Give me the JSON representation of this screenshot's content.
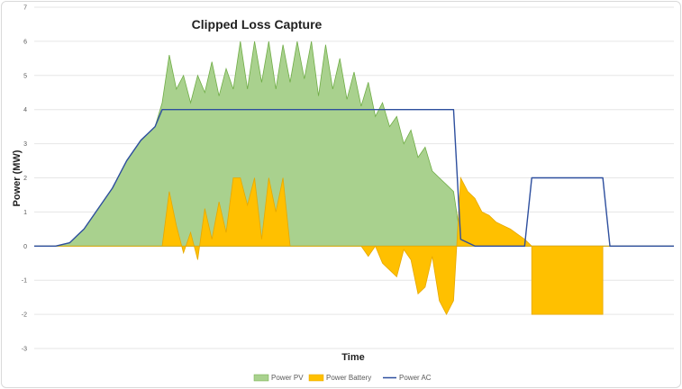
{
  "chart_data": {
    "type": "area",
    "title": "Clipped Loss Capture",
    "xlabel": "Time",
    "ylabel": "Power (MW)",
    "ylim": [
      -3,
      7
    ],
    "y_ticks": [
      "7",
      "6",
      "5",
      "4",
      "3",
      "2",
      "1",
      "0",
      "-1",
      "-2",
      "-3"
    ],
    "grid": true,
    "legend_position": "bottom",
    "x": [
      0,
      2,
      4,
      6,
      8,
      10,
      12,
      14,
      16,
      18,
      20,
      22,
      24,
      26,
      28,
      30,
      32,
      34,
      36,
      38,
      40,
      42,
      44,
      46,
      48,
      50,
      52,
      54,
      56,
      58,
      60,
      62,
      64,
      66,
      68,
      70,
      72,
      74,
      76,
      78,
      80,
      82,
      84,
      86,
      88,
      90,
      92,
      94,
      96,
      98,
      100,
      102,
      104,
      106,
      108,
      110,
      112,
      114,
      116,
      118,
      120,
      122,
      124,
      126,
      128,
      130,
      132,
      134,
      136,
      138,
      140,
      142,
      144,
      146,
      148,
      150,
      152,
      154,
      156,
      158,
      160,
      162,
      164,
      166,
      168,
      170,
      172,
      174,
      176,
      178,
      180
    ],
    "series": [
      {
        "name": "Power PV",
        "color": "#a9d18e",
        "stroke": "#70ad47",
        "values": [
          0,
          0,
          0,
          0,
          0.05,
          0.1,
          0.3,
          0.5,
          0.8,
          1.1,
          1.4,
          1.7,
          2.1,
          2.5,
          2.8,
          3.1,
          3.3,
          3.5,
          4.2,
          5.6,
          4.6,
          5.0,
          4.2,
          5.0,
          4.5,
          5.4,
          4.4,
          5.2,
          4.6,
          6.0,
          4.6,
          6.0,
          4.8,
          6.0,
          4.6,
          5.9,
          4.8,
          6.0,
          4.9,
          6.0,
          4.4,
          5.9,
          4.6,
          5.5,
          4.3,
          5.1,
          4.1,
          4.8,
          3.8,
          4.2,
          3.5,
          3.8,
          3.0,
          3.4,
          2.6,
          2.9,
          2.2,
          2.0,
          1.8,
          1.6,
          0.2,
          0.1,
          0,
          0,
          0,
          0,
          0,
          0,
          0,
          0,
          0,
          0,
          0,
          0,
          0,
          0,
          0,
          0,
          0,
          0,
          0,
          0,
          0,
          0,
          0,
          0,
          0,
          0,
          0,
          0,
          0
        ]
      },
      {
        "name": "Power Battery",
        "color": "#ffc000",
        "stroke": "#e6a800",
        "values": [
          0,
          0,
          0,
          0,
          0,
          0,
          0,
          0,
          0,
          0,
          0,
          0,
          0,
          0,
          0,
          0,
          0,
          0,
          0,
          1.6,
          0.6,
          -0.2,
          0.4,
          -0.4,
          1.1,
          0.2,
          1.3,
          0.4,
          2.0,
          2.0,
          1.2,
          2.0,
          0.2,
          2.0,
          1.0,
          2.0,
          0,
          0,
          0,
          0,
          0,
          0,
          0,
          0,
          0,
          0,
          0,
          -0.3,
          0,
          -0.5,
          -0.7,
          -0.9,
          -0.1,
          -0.4,
          -1.4,
          -1.2,
          -0.3,
          -1.6,
          -2.0,
          -1.6,
          2.0,
          1.6,
          1.4,
          1.0,
          0.9,
          0.7,
          0.6,
          0.5,
          0.35,
          0.2,
          0,
          0,
          0,
          0,
          0,
          0,
          0,
          0,
          0,
          0,
          0,
          0,
          0,
          0,
          0,
          0,
          0,
          0,
          0,
          0,
          0
        ],
        "window_values": {
          "x": [
            121,
            122,
            122.5,
            123,
            146,
            147,
            147.5,
            148,
            170
          ],
          "note": ""
        }
      },
      {
        "name": "Power AC",
        "color": "#2e4f9e",
        "values": [
          0,
          0,
          0,
          0,
          0.05,
          0.1,
          0.3,
          0.5,
          0.8,
          1.1,
          1.4,
          1.7,
          2.1,
          2.5,
          2.8,
          3.1,
          3.3,
          3.5,
          4.0,
          4.0,
          4.0,
          4.0,
          4.0,
          4.0,
          4.0,
          4.0,
          4.0,
          4.0,
          4.0,
          4.0,
          4.0,
          4.0,
          4.0,
          4.0,
          4.0,
          4.0,
          4.0,
          4.0,
          4.0,
          4.0,
          4.0,
          4.0,
          4.0,
          4.0,
          4.0,
          4.0,
          4.0,
          4.0,
          4.0,
          4.0,
          4.0,
          4.0,
          4.0,
          4.0,
          4.0,
          4.0,
          4.0,
          4.0,
          4.0,
          4.0,
          0.2,
          0.1,
          0,
          0,
          0,
          0,
          0,
          0,
          0,
          0,
          2.0,
          2.0,
          2.0,
          2.0,
          2.0,
          2.0,
          2.0,
          2.0,
          2.0,
          2.0,
          2.0,
          0,
          0,
          0,
          0,
          0,
          0,
          0,
          0,
          0,
          0
        ]
      }
    ],
    "discharge_block": {
      "x_start": 140,
      "x_end": 160,
      "value": -2
    }
  },
  "legend": {
    "pv_label": "Power PV",
    "battery_label": "Power Battery",
    "ac_label": "Power AC"
  }
}
